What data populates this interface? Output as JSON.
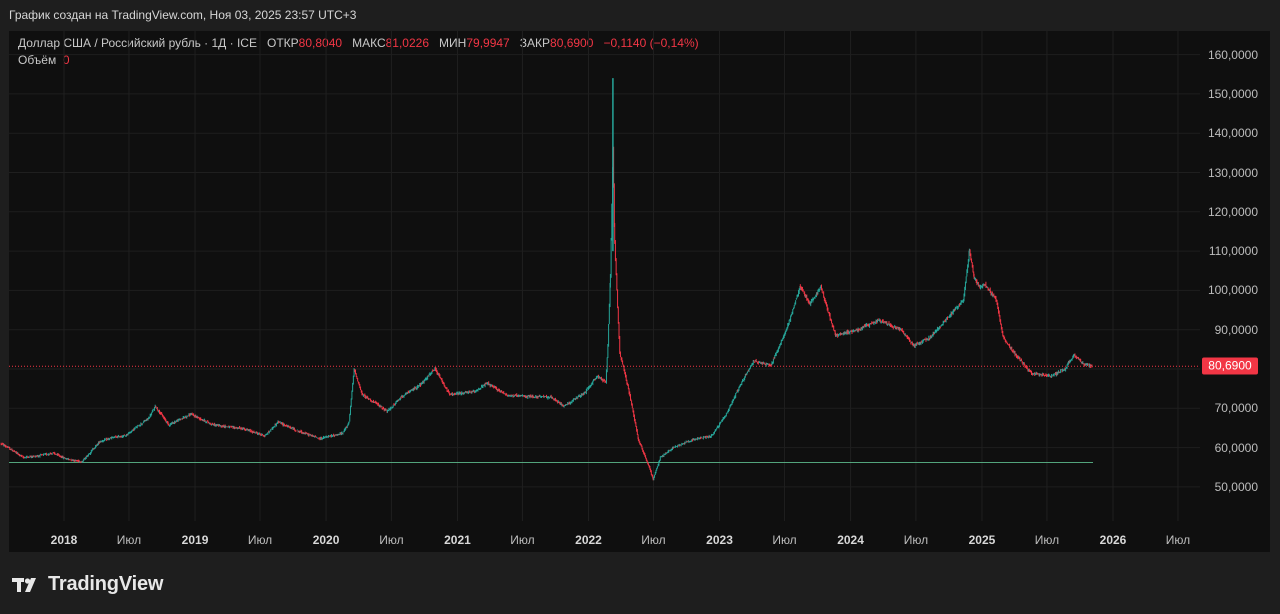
{
  "header": {
    "caption": "График создан на TradingView.com, Ноя 03, 2025 23:57 UTC+3"
  },
  "legend": {
    "symbol": "Доллар США / Российский рубль · 1Д · ICE",
    "open_label": "ОТКР",
    "open_value": "80,8040",
    "high_label": "МАКС",
    "high_value": "81,0226",
    "low_label": "МИН",
    "low_value": "79,9947",
    "close_label": "ЗАКР",
    "close_value": "80,6900",
    "change": "−0,1140 (−0,14%)",
    "volume_label": "Объём",
    "volume_value": "0"
  },
  "last_price_badge": "80,6900",
  "footer": {
    "brand": "TradingView"
  },
  "colors": {
    "up": "#26a69a",
    "down": "#f23645",
    "background": "#0f0f0f",
    "frame": "#1e1e1e",
    "grid": "#1f1f1f"
  },
  "chart_data": {
    "type": "candlestick",
    "symbol": "USD/RUB",
    "timeframe": "1D",
    "exchange": "ICE",
    "y_axis": {
      "ticks": [
        50,
        60,
        70,
        80,
        90,
        100,
        110,
        120,
        130,
        140,
        150,
        160
      ],
      "tick_labels": [
        "50,0000",
        "60,0000",
        "70,0000",
        "80,0000",
        "90,0000",
        "100,0000",
        "110,0000",
        "120,0000",
        "130,0000",
        "140,0000",
        "150,0000",
        "160,0000"
      ]
    },
    "x_axis": {
      "ticks": [
        {
          "date": "2018-01-01",
          "label": "2018",
          "major": true
        },
        {
          "date": "2018-07-01",
          "label": "Июл",
          "major": false
        },
        {
          "date": "2019-01-01",
          "label": "2019",
          "major": true
        },
        {
          "date": "2019-07-01",
          "label": "Июл",
          "major": false
        },
        {
          "date": "2020-01-01",
          "label": "2020",
          "major": true
        },
        {
          "date": "2020-07-01",
          "label": "Июл",
          "major": false
        },
        {
          "date": "2021-01-01",
          "label": "2021",
          "major": true
        },
        {
          "date": "2021-07-01",
          "label": "Июл",
          "major": false
        },
        {
          "date": "2022-01-01",
          "label": "2022",
          "major": true
        },
        {
          "date": "2022-07-01",
          "label": "Июл",
          "major": false
        },
        {
          "date": "2023-01-01",
          "label": "2023",
          "major": true
        },
        {
          "date": "2023-07-01",
          "label": "Июл",
          "major": false
        },
        {
          "date": "2024-01-01",
          "label": "2024",
          "major": true
        },
        {
          "date": "2024-07-01",
          "label": "Июл",
          "major": false
        },
        {
          "date": "2025-01-01",
          "label": "2025",
          "major": true
        },
        {
          "date": "2025-07-01",
          "label": "Июл",
          "major": false
        },
        {
          "date": "2026-01-01",
          "label": "2026",
          "major": true
        },
        {
          "date": "2026-07-01",
          "label": "Июл",
          "major": false
        }
      ]
    },
    "last_price": 80.69,
    "reference_line_price": 56.2,
    "price_path": [
      [
        "2017-07-10",
        61.0
      ],
      [
        "2017-08-10",
        59.3
      ],
      [
        "2017-09-10",
        57.5
      ],
      [
        "2017-10-20",
        57.9
      ],
      [
        "2017-12-01",
        58.6
      ],
      [
        "2018-01-05",
        57.2
      ],
      [
        "2018-02-20",
        56.4
      ],
      [
        "2018-04-10",
        61.5
      ],
      [
        "2018-05-15",
        62.5
      ],
      [
        "2018-06-20",
        63.0
      ],
      [
        "2018-08-25",
        67.5
      ],
      [
        "2018-09-12",
        70.5
      ],
      [
        "2018-10-20",
        65.8
      ],
      [
        "2018-12-20",
        68.5
      ],
      [
        "2019-02-20",
        65.8
      ],
      [
        "2019-05-15",
        64.8
      ],
      [
        "2019-07-15",
        63.0
      ],
      [
        "2019-08-20",
        66.5
      ],
      [
        "2019-10-15",
        64.2
      ],
      [
        "2019-12-15",
        62.3
      ],
      [
        "2020-02-15",
        63.6
      ],
      [
        "2020-03-05",
        66.5
      ],
      [
        "2020-03-19",
        80.0
      ],
      [
        "2020-04-10",
        73.5
      ],
      [
        "2020-05-20",
        71.2
      ],
      [
        "2020-06-20",
        69.2
      ],
      [
        "2020-07-30",
        73.0
      ],
      [
        "2020-09-20",
        76.0
      ],
      [
        "2020-10-30",
        80.0
      ],
      [
        "2020-12-10",
        73.5
      ],
      [
        "2021-02-15",
        74.2
      ],
      [
        "2021-03-25",
        76.3
      ],
      [
        "2021-05-20",
        73.3
      ],
      [
        "2021-07-10",
        73.0
      ],
      [
        "2021-09-15",
        72.9
      ],
      [
        "2021-10-25",
        70.6
      ],
      [
        "2021-12-20",
        73.8
      ],
      [
        "2022-01-25",
        78.2
      ],
      [
        "2022-02-18",
        76.6
      ],
      [
        "2022-02-24",
        86.0
      ],
      [
        "2022-03-03",
        104.0
      ],
      [
        "2022-03-10",
        136.0
      ],
      [
        "2022-03-15",
        112.0
      ],
      [
        "2022-03-29",
        84.0
      ],
      [
        "2022-04-12",
        79.0
      ],
      [
        "2022-04-29",
        72.0
      ],
      [
        "2022-05-20",
        62.0
      ],
      [
        "2022-06-15",
        56.0
      ],
      [
        "2022-06-30",
        52.0
      ],
      [
        "2022-07-20",
        57.5
      ],
      [
        "2022-08-25",
        60.0
      ],
      [
        "2022-10-10",
        61.8
      ],
      [
        "2022-12-10",
        63.0
      ],
      [
        "2023-01-20",
        68.5
      ],
      [
        "2023-02-20",
        74.5
      ],
      [
        "2023-04-05",
        82.0
      ],
      [
        "2023-05-25",
        81.0
      ],
      [
        "2023-07-10",
        91.0
      ],
      [
        "2023-08-14",
        101.0
      ],
      [
        "2023-09-10",
        96.5
      ],
      [
        "2023-10-10",
        100.8
      ],
      [
        "2023-11-20",
        88.5
      ],
      [
        "2024-01-20",
        90.0
      ],
      [
        "2024-03-20",
        92.4
      ],
      [
        "2024-05-20",
        90.0
      ],
      [
        "2024-06-25",
        86.0
      ],
      [
        "2024-08-10",
        88.0
      ],
      [
        "2024-09-25",
        92.8
      ],
      [
        "2024-11-10",
        97.5
      ],
      [
        "2024-11-27",
        110.0
      ],
      [
        "2024-12-10",
        103.5
      ],
      [
        "2024-12-24",
        101.0
      ],
      [
        "2025-01-10",
        101.5
      ],
      [
        "2025-02-10",
        97.5
      ],
      [
        "2025-03-01",
        88.0
      ],
      [
        "2025-04-01",
        84.0
      ],
      [
        "2025-05-20",
        78.8
      ],
      [
        "2025-06-20",
        78.5
      ],
      [
        "2025-07-15",
        78.2
      ],
      [
        "2025-08-20",
        80.1
      ],
      [
        "2025-09-15",
        83.5
      ],
      [
        "2025-10-10",
        81.3
      ],
      [
        "2025-11-03",
        80.69
      ]
    ]
  }
}
